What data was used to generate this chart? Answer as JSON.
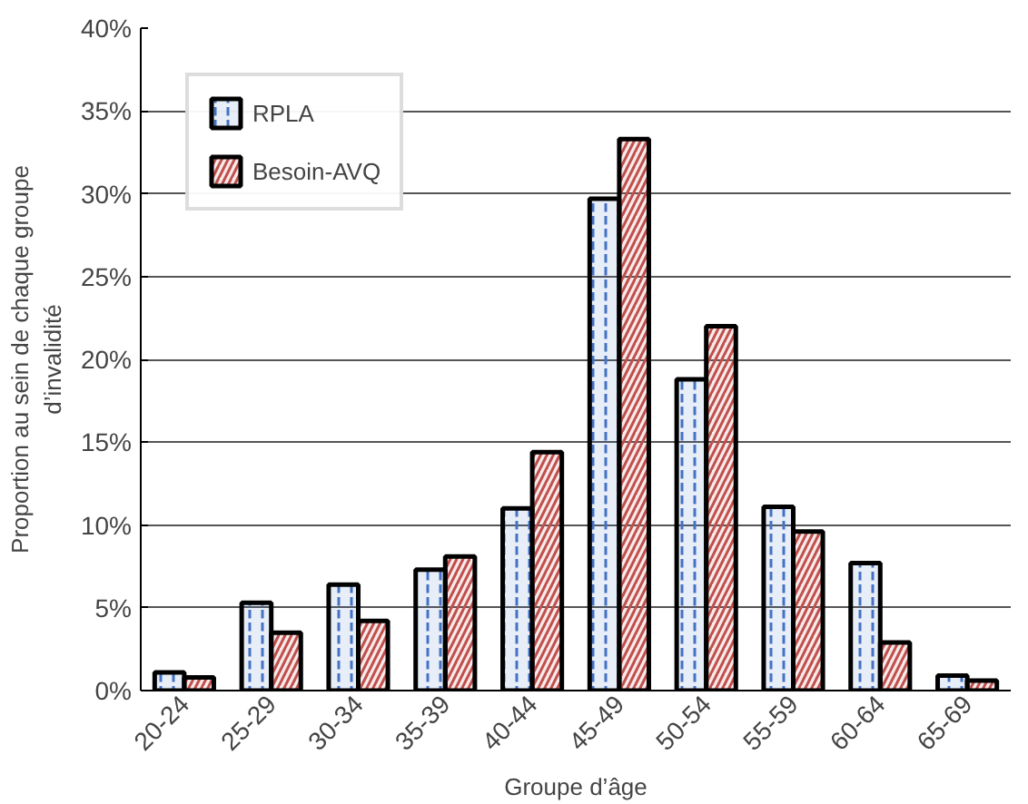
{
  "chart_data": {
    "type": "bar",
    "xlabel": "Groupe d’âge",
    "ylabel": "Proportion au sein de chaque groupe d’invalidité",
    "categories": [
      "20-24",
      "25-29",
      "30-34",
      "35-39",
      "40-44",
      "45-49",
      "50-54",
      "55-59",
      "60-64",
      "65-69"
    ],
    "series": [
      {
        "name": "RPLA",
        "color": "#4472c4",
        "values": [
          1.1,
          5.3,
          6.4,
          7.3,
          11.0,
          29.7,
          18.8,
          11.1,
          7.7,
          0.9
        ]
      },
      {
        "name": "Besoin-AVQ",
        "color": "#c0504d",
        "values": [
          0.8,
          3.5,
          4.2,
          8.1,
          14.4,
          33.3,
          22.0,
          9.6,
          2.9,
          0.6
        ]
      }
    ],
    "ylim": [
      0,
      40
    ],
    "yticks": [
      {
        "value": 0,
        "label": "0%"
      },
      {
        "value": 5,
        "label": "5%"
      },
      {
        "value": 10,
        "label": "10%"
      },
      {
        "value": 15,
        "label": "15%"
      },
      {
        "value": 20,
        "label": "20%"
      },
      {
        "value": 25,
        "label": "25%"
      },
      {
        "value": 30,
        "label": "30%"
      },
      {
        "value": 35,
        "label": "35%"
      },
      {
        "value": 40,
        "label": "40%"
      }
    ],
    "grid": "y",
    "legend": "top left"
  }
}
